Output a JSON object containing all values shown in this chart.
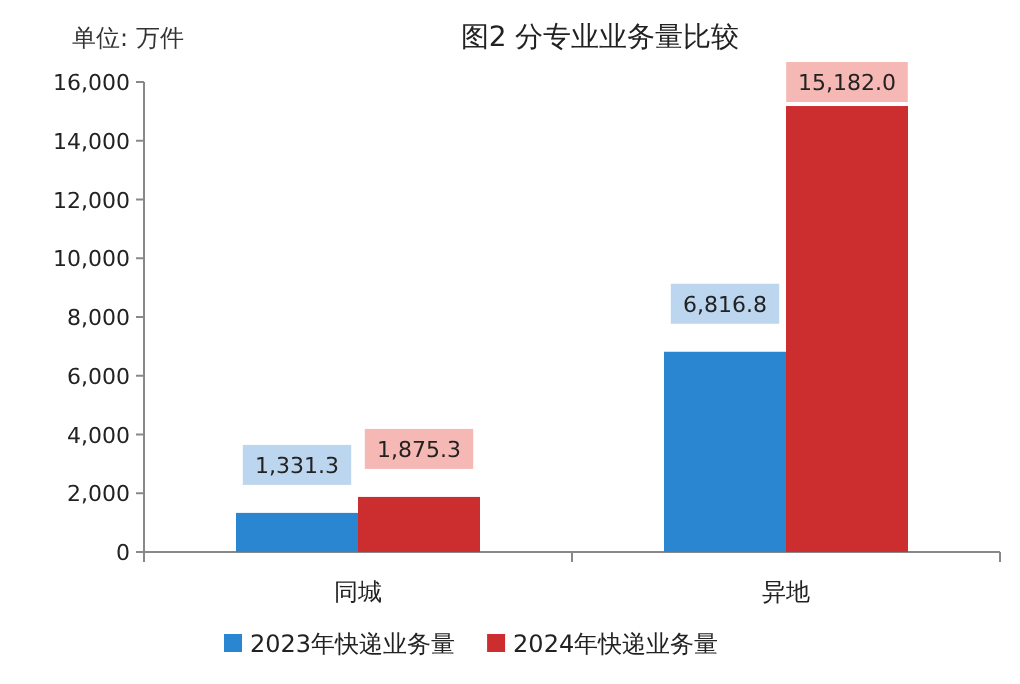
{
  "chart_data": {
    "type": "bar",
    "title": "图2 分专业业务量比较",
    "annotations": [
      "单位: 万件"
    ],
    "categories": [
      "同城",
      "异地"
    ],
    "series": [
      {
        "name": "2023年快递业务量",
        "color": "#2b86d1",
        "values": [
          1331.3,
          6816.8
        ],
        "value_labels": [
          "1,331.3",
          "6,816.8"
        ]
      },
      {
        "name": "2024年快递业务量",
        "color": "#cc2e30",
        "values": [
          1875.3,
          15182.0
        ],
        "value_labels": [
          "1,875.3",
          "15,182.0"
        ]
      }
    ],
    "ylim": [
      0,
      16000
    ],
    "yticks": [
      0,
      {
        "value": 2000,
        "label": "2,000"
      },
      {
        "value": 4000,
        "label": "4,000"
      },
      {
        "value": 6000,
        "label": "6,000"
      },
      {
        "value": 8000,
        "label": "8,000"
      },
      {
        "value": 10000,
        "label": "10,000"
      },
      {
        "value": 12000,
        "label": "12,000"
      },
      {
        "value": 14000,
        "label": "14,000"
      },
      {
        "value": 16000,
        "label": "16,000"
      }
    ],
    "grid": false,
    "legend": "bottom"
  }
}
